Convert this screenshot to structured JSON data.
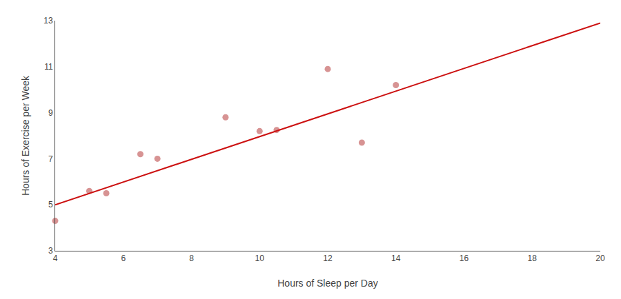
{
  "chart_data": {
    "type": "scatter",
    "xlabel": "Hours of Sleep per Day",
    "ylabel": "Hours of Exercise per Week",
    "series": [
      {
        "type": "scatter",
        "marker": "circle",
        "color": "#d08080",
        "x": [
          4,
          5,
          5.5,
          6.5,
          7,
          9,
          10,
          10.5,
          12,
          13,
          14
        ],
        "values": [
          4.3,
          5.6,
          5.5,
          7.2,
          7.0,
          8.8,
          8.2,
          8.25,
          10.9,
          7.7,
          10.2
        ]
      },
      {
        "type": "line",
        "line_style": "solid",
        "color": "#cc1111",
        "x": [
          4,
          20
        ],
        "values": [
          5.0,
          12.9
        ]
      }
    ],
    "xlim": [
      4,
      20
    ],
    "ylim": [
      3,
      13
    ],
    "xticks": [
      4,
      6,
      8,
      10,
      12,
      14,
      16,
      18,
      20
    ],
    "yticks": [
      3,
      5,
      7,
      9,
      11,
      13
    ],
    "grid": false
  }
}
